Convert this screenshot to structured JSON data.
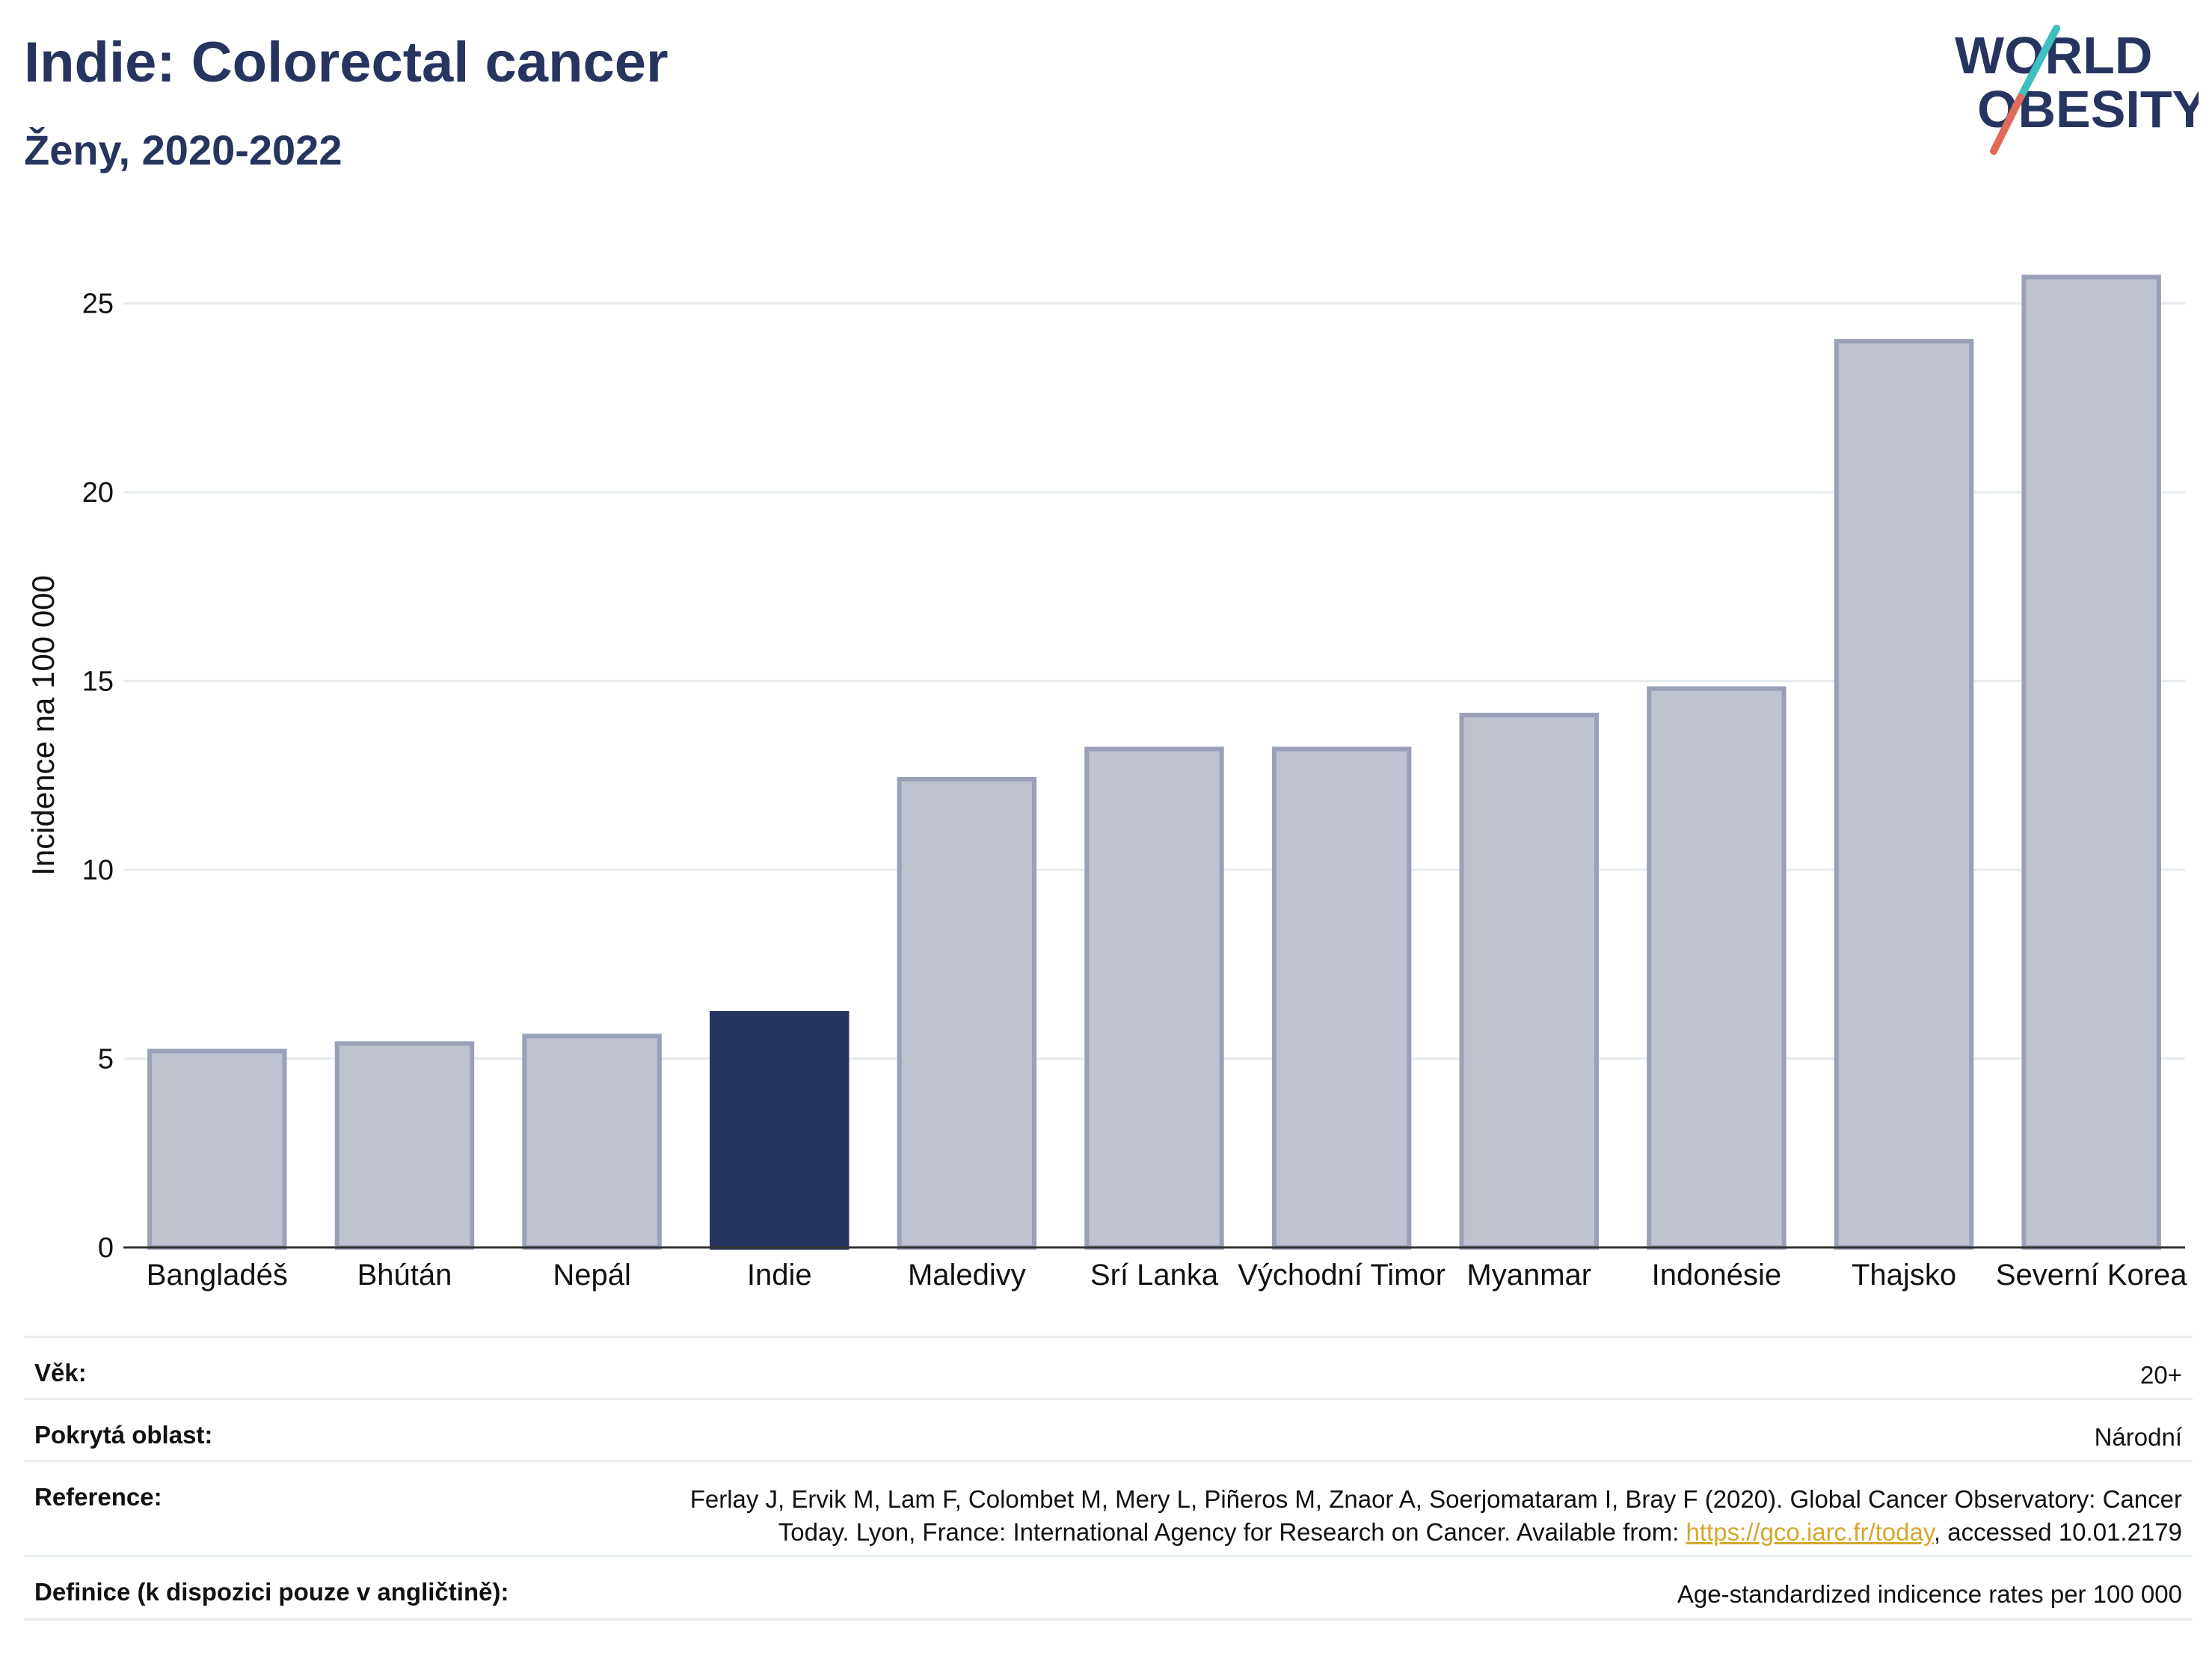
{
  "header": {
    "title": "Indie: Colorectal cancer",
    "subtitle": "Ženy, 2020-2022",
    "logo_line1": "WORLD",
    "logo_line2": "OBESITY"
  },
  "colors": {
    "highlight": "#283460",
    "bar_fill": "#bfc2cf",
    "bar_stroke": "#9aa0b8",
    "grid": "#e6ecef",
    "link": "#d4a82c",
    "logo_slash_top": "#3fbfbf",
    "logo_slash_bottom": "#e06b5a"
  },
  "chart_data": {
    "type": "bar",
    "title": "Indie: Colorectal cancer",
    "subtitle": "Ženy, 2020-2022",
    "ylabel": "Incidence na 100 000",
    "xlabel": "",
    "ylim": [
      0,
      26.5
    ],
    "yticks": [
      0,
      5,
      10,
      15,
      20,
      25
    ],
    "grid": true,
    "highlight_category": "Indie",
    "categories": [
      "Bangladéš",
      "Bhútán",
      "Nepál",
      "Indie",
      "Maledivy",
      "Srí Lanka",
      "Východní Timor",
      "Myanmar",
      "Indonésie",
      "Thajsko",
      "Severní Korea"
    ],
    "values": [
      5.2,
      5.4,
      5.6,
      6.2,
      12.4,
      13.2,
      13.2,
      14.1,
      14.8,
      24.0,
      25.7
    ]
  },
  "meta": {
    "rows": [
      {
        "key": "Věk:",
        "value": "20+"
      },
      {
        "key": "Pokrytá oblast:",
        "value": "Národní"
      },
      {
        "key": "Reference:",
        "value_line1": "Ferlay J, Ervik M, Lam F, Colombet M, Mery L, Piñeros M, Znaor A, Soerjomataram I, Bray F (2020). Global Cancer Observatory: Cancer",
        "value_line2_prefix": "Today. Lyon, France: International Agency for Research on Cancer. Available from: ",
        "link_text": "https://gco.iarc.fr/today",
        "value_line2_suffix": ", accessed 10.01.2179"
      },
      {
        "key": "Definice (k dispozici pouze v angličtině):",
        "value": "Age-standardized indicence rates per 100 000"
      }
    ]
  }
}
